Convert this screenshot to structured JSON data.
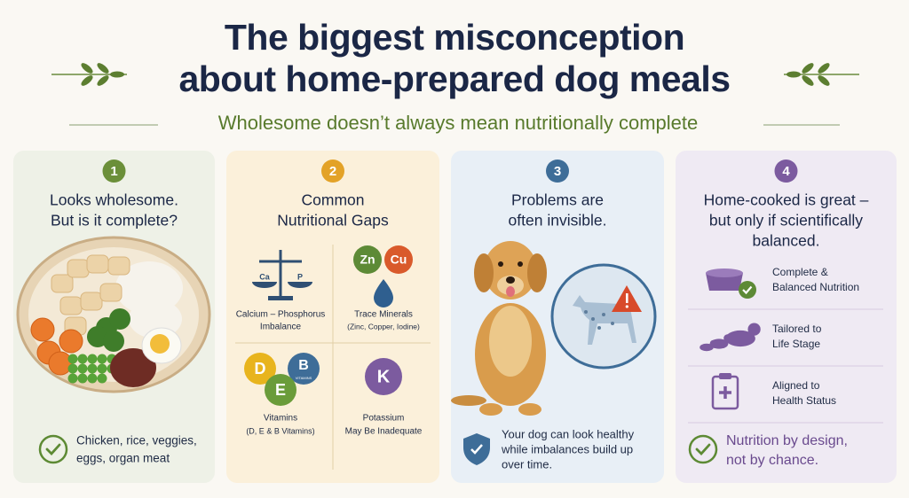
{
  "header": {
    "title": [
      "The biggest misconception",
      "about home-prepared dog meals"
    ],
    "subtitle": "Wholesome doesn’t always mean nutritionally complete"
  },
  "cards": [
    {
      "number": "1",
      "heading": [
        "Looks wholesome.",
        "But is it complete?"
      ],
      "footer": [
        "Chicken, rice, veggies,",
        "eggs, organ meat"
      ]
    },
    {
      "number": "2",
      "heading": [
        "Common",
        "Nutritional Gaps"
      ],
      "items": [
        {
          "icons": [
            "Ca",
            "P"
          ],
          "label": [
            "Calcium – Phosphorus",
            "Imbalance"
          ]
        },
        {
          "icons": [
            "Zn",
            "Cu"
          ],
          "label": [
            "Trace Minerals",
            "(Zinc, Copper, Iodine)"
          ]
        },
        {
          "icons": [
            "D",
            "B",
            "E"
          ],
          "icon_note": "VITAMINS",
          "label": [
            "Vitamins",
            "(D, E & B Vitamins)"
          ]
        },
        {
          "icons": [
            "K"
          ],
          "label": [
            "Potassium",
            "May Be Inadequate"
          ]
        }
      ]
    },
    {
      "number": "3",
      "heading": [
        "Problems are",
        "often invisible."
      ],
      "footer": [
        "Your dog can look healthy",
        "while imbalances build up",
        "over time."
      ]
    },
    {
      "number": "4",
      "heading": [
        "Home-cooked is great –",
        "but only if scientifically",
        "balanced."
      ],
      "items": [
        {
          "label": [
            "Complete &",
            "Balanced Nutrition"
          ]
        },
        {
          "label": [
            "Tailored to",
            "Life Stage"
          ]
        },
        {
          "label": [
            "Aligned to",
            "Health Status"
          ]
        }
      ],
      "footer": [
        "Nutrition by design,",
        "not by chance."
      ]
    }
  ]
}
